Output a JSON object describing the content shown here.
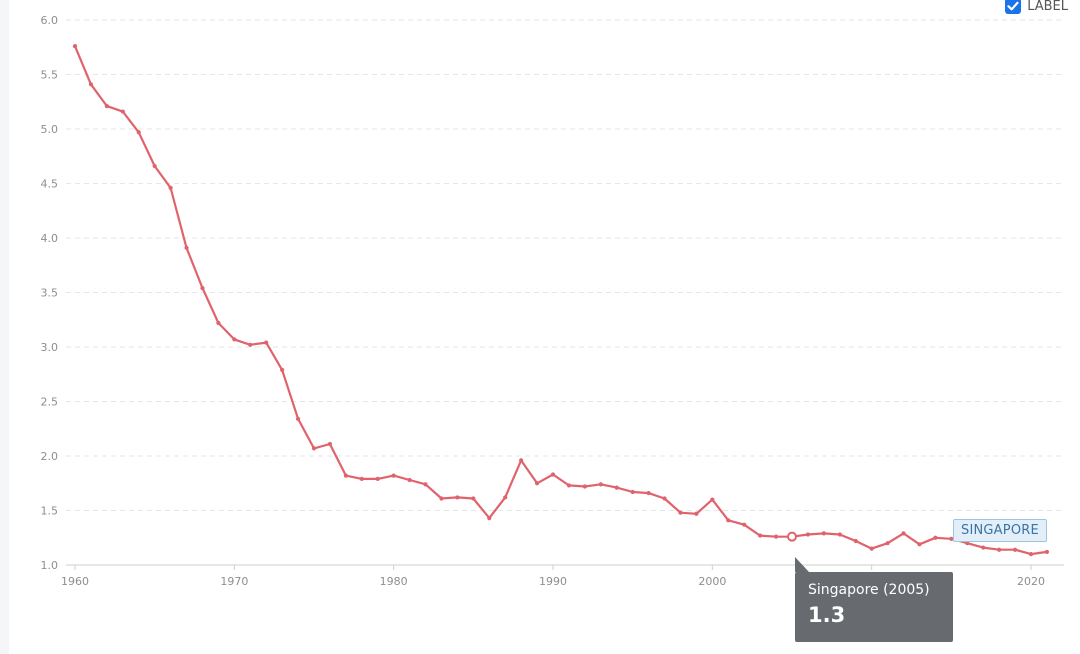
{
  "colors": {
    "series": "#e0636c",
    "checkbox": "#1a73e8",
    "tooltip_bg": "#676b70"
  },
  "controls": {
    "label_toggle": {
      "text": "LABEL",
      "checked": true,
      "icon": "checkmark-icon"
    }
  },
  "series_tag": "SINGAPORE",
  "tooltip": {
    "title": "Singapore (2005)",
    "value": "1.3"
  },
  "chart_data": {
    "type": "line",
    "title": "",
    "xlabel": "",
    "ylabel": "",
    "xlim": [
      1960,
      2021
    ],
    "ylim": [
      1.0,
      6.0
    ],
    "x_ticks": [
      1960,
      1970,
      1980,
      1990,
      2000,
      2010,
      2020
    ],
    "y_ticks": [
      "1.0",
      "1.5",
      "2.0",
      "2.5",
      "3.0",
      "3.5",
      "4.0",
      "4.5",
      "5.0",
      "5.5",
      "6.0"
    ],
    "grid": true,
    "highlight": {
      "x": 2005,
      "y": 1.26
    },
    "series": [
      {
        "name": "Singapore",
        "x": [
          1960,
          1961,
          1962,
          1963,
          1964,
          1965,
          1966,
          1967,
          1968,
          1969,
          1970,
          1971,
          1972,
          1973,
          1974,
          1975,
          1976,
          1977,
          1978,
          1979,
          1980,
          1981,
          1982,
          1983,
          1984,
          1985,
          1986,
          1987,
          1988,
          1989,
          1990,
          1991,
          1992,
          1993,
          1994,
          1995,
          1996,
          1997,
          1998,
          1999,
          2000,
          2001,
          2002,
          2003,
          2004,
          2005,
          2006,
          2007,
          2008,
          2009,
          2010,
          2011,
          2012,
          2013,
          2014,
          2015,
          2016,
          2017,
          2018,
          2019,
          2020,
          2021
        ],
        "values": [
          5.76,
          5.41,
          5.21,
          5.16,
          4.97,
          4.66,
          4.46,
          3.91,
          3.54,
          3.22,
          3.07,
          3.02,
          3.04,
          2.79,
          2.34,
          2.07,
          2.11,
          1.82,
          1.79,
          1.79,
          1.82,
          1.78,
          1.74,
          1.61,
          1.62,
          1.61,
          1.43,
          1.62,
          1.96,
          1.75,
          1.83,
          1.73,
          1.72,
          1.74,
          1.71,
          1.67,
          1.66,
          1.61,
          1.48,
          1.47,
          1.6,
          1.41,
          1.37,
          1.27,
          1.26,
          1.26,
          1.28,
          1.29,
          1.28,
          1.22,
          1.15,
          1.2,
          1.29,
          1.19,
          1.25,
          1.24,
          1.2,
          1.16,
          1.14,
          1.14,
          1.1,
          1.12
        ]
      }
    ]
  }
}
